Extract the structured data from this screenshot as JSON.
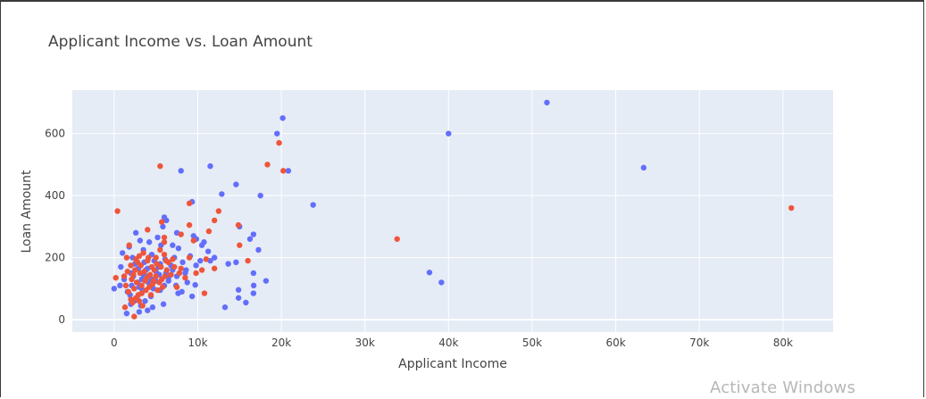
{
  "chart_data": {
    "type": "scatter",
    "title": "Applicant Income vs. Loan Amount",
    "xlabel": "Applicant Income",
    "ylabel": "Loan Amount",
    "xlim": [
      -5000,
      86000
    ],
    "ylim": [
      -40,
      740
    ],
    "x_ticks": [
      {
        "value": 0,
        "label": "0"
      },
      {
        "value": 10000,
        "label": "10k"
      },
      {
        "value": 20000,
        "label": "20k"
      },
      {
        "value": 30000,
        "label": "30k"
      },
      {
        "value": 40000,
        "label": "40k"
      },
      {
        "value": 50000,
        "label": "50k"
      },
      {
        "value": 60000,
        "label": "60k"
      },
      {
        "value": 70000,
        "label": "70k"
      },
      {
        "value": 80000,
        "label": "80k"
      }
    ],
    "y_ticks": [
      {
        "value": 0,
        "label": "0"
      },
      {
        "value": 200,
        "label": "200"
      },
      {
        "value": 400,
        "label": "400"
      },
      {
        "value": 600,
        "label": "600"
      }
    ],
    "grid": true,
    "series": [
      {
        "color": "#636efa",
        "points": [
          [
            51763,
            700
          ],
          [
            20166,
            650
          ],
          [
            39999,
            600
          ],
          [
            19484,
            600
          ],
          [
            63337,
            490
          ],
          [
            20833,
            480
          ],
          [
            8000,
            480
          ],
          [
            11500,
            495
          ],
          [
            14583,
            436
          ],
          [
            12876,
            405
          ],
          [
            17500,
            400
          ],
          [
            23803,
            370
          ],
          [
            9323,
            380
          ],
          [
            6000,
            330
          ],
          [
            6250,
            320
          ],
          [
            5833,
            300
          ],
          [
            15000,
            300
          ],
          [
            16666,
            275
          ],
          [
            9500,
            270
          ],
          [
            9833,
            260
          ],
          [
            16250,
            260
          ],
          [
            10750,
            250
          ],
          [
            11250,
            220
          ],
          [
            10500,
            240
          ],
          [
            7500,
            280
          ],
          [
            7000,
            240
          ],
          [
            17263,
            225
          ],
          [
            12000,
            200
          ],
          [
            11500,
            190
          ],
          [
            14583,
            185
          ],
          [
            13650,
            180
          ],
          [
            16667,
            150
          ],
          [
            18165,
            125
          ],
          [
            37719,
            152
          ],
          [
            39147,
            120
          ],
          [
            16692,
            110
          ],
          [
            14880,
            96
          ],
          [
            16666,
            85
          ],
          [
            14880,
            70
          ],
          [
            15759,
            55
          ],
          [
            13262,
            40
          ],
          [
            9328,
            75
          ],
          [
            9703,
            112
          ],
          [
            7660,
            85
          ],
          [
            8750,
            120
          ],
          [
            5500,
            95
          ],
          [
            4000,
            30
          ],
          [
            3000,
            25
          ],
          [
            1500,
            20
          ],
          [
            0,
            100
          ],
          [
            700,
            110
          ],
          [
            800,
            170
          ],
          [
            1000,
            215
          ],
          [
            1800,
            235
          ],
          [
            2000,
            150
          ],
          [
            2200,
            200
          ],
          [
            2500,
            180
          ],
          [
            2600,
            280
          ],
          [
            2800,
            120
          ],
          [
            3100,
            255
          ],
          [
            3300,
            130
          ],
          [
            3500,
            225
          ],
          [
            3800,
            160
          ],
          [
            4200,
            250
          ],
          [
            4500,
            210
          ],
          [
            4800,
            190
          ],
          [
            5200,
            265
          ],
          [
            5600,
            240
          ],
          [
            6200,
            150
          ],
          [
            6800,
            175
          ],
          [
            7200,
            200
          ],
          [
            7700,
            230
          ],
          [
            8200,
            185
          ],
          [
            8600,
            160
          ],
          [
            9100,
            205
          ],
          [
            9800,
            175
          ],
          [
            10300,
            190
          ],
          [
            3200,
            45
          ],
          [
            2400,
            60
          ],
          [
            4600,
            40
          ],
          [
            5900,
            50
          ],
          [
            1200,
            130
          ],
          [
            1600,
            90
          ],
          [
            2100,
            110
          ],
          [
            2700,
            70
          ],
          [
            3400,
            95
          ],
          [
            3900,
            140
          ],
          [
            4300,
            115
          ],
          [
            5000,
            125
          ],
          [
            5400,
            145
          ],
          [
            6500,
            135
          ],
          [
            7400,
            110
          ],
          [
            8100,
            90
          ],
          [
            2900,
            165
          ],
          [
            3600,
            185
          ],
          [
            4100,
            120
          ],
          [
            4700,
            100
          ],
          [
            5300,
            170
          ],
          [
            6100,
            195
          ],
          [
            2300,
            140
          ],
          [
            1900,
            80
          ],
          [
            3700,
            60
          ],
          [
            4400,
            75
          ],
          [
            2000,
            50
          ],
          [
            3000,
            105
          ],
          [
            3500,
            145
          ],
          [
            4000,
            165
          ],
          [
            4500,
            130
          ],
          [
            5000,
            155
          ],
          [
            5500,
            180
          ],
          [
            6000,
            110
          ],
          [
            6500,
            125
          ],
          [
            7000,
            160
          ],
          [
            7500,
            140
          ],
          [
            8500,
            150
          ]
        ]
      },
      {
        "color": "#ef553b",
        "points": [
          [
            81000,
            360
          ],
          [
            33846,
            260
          ],
          [
            18333,
            500
          ],
          [
            19730,
            570
          ],
          [
            20233,
            480
          ],
          [
            5500,
            495
          ],
          [
            400,
            350
          ],
          [
            9000,
            375
          ],
          [
            12500,
            350
          ],
          [
            12000,
            320
          ],
          [
            14866,
            305
          ],
          [
            9000,
            305
          ],
          [
            5700,
            315
          ],
          [
            8000,
            275
          ],
          [
            9500,
            255
          ],
          [
            4000,
            290
          ],
          [
            6000,
            250
          ],
          [
            15000,
            240
          ],
          [
            11333,
            285
          ],
          [
            6000,
            265
          ],
          [
            16000,
            190
          ],
          [
            9000,
            200
          ],
          [
            11000,
            195
          ],
          [
            12000,
            165
          ],
          [
            10500,
            160
          ],
          [
            9800,
            150
          ],
          [
            7500,
            105
          ],
          [
            10800,
            85
          ],
          [
            1800,
            240
          ],
          [
            1500,
            200
          ],
          [
            2000,
            175
          ],
          [
            2500,
            160
          ],
          [
            3000,
            205
          ],
          [
            3500,
            215
          ],
          [
            4000,
            190
          ],
          [
            4500,
            170
          ],
          [
            5000,
            140
          ],
          [
            5500,
            225
          ],
          [
            6000,
            210
          ],
          [
            6500,
            185
          ],
          [
            7000,
            195
          ],
          [
            8000,
            165
          ],
          [
            8500,
            135
          ],
          [
            1200,
            140
          ],
          [
            1400,
            110
          ],
          [
            1700,
            90
          ],
          [
            2100,
            130
          ],
          [
            2400,
            100
          ],
          [
            2700,
            120
          ],
          [
            3100,
            150
          ],
          [
            3300,
            85
          ],
          [
            3700,
            125
          ],
          [
            4200,
            105
          ],
          [
            4600,
            115
          ],
          [
            5200,
            95
          ],
          [
            5700,
            130
          ],
          [
            6300,
            160
          ],
          [
            6800,
            145
          ],
          [
            7200,
            170
          ],
          [
            7800,
            150
          ],
          [
            2200,
            55
          ],
          [
            2600,
            70
          ],
          [
            3000,
            60
          ],
          [
            3400,
            45
          ],
          [
            1300,
            40
          ],
          [
            2400,
            10
          ],
          [
            200,
            135
          ],
          [
            2800,
            185
          ],
          [
            3200,
            175
          ],
          [
            3600,
            155
          ],
          [
            3900,
            135
          ],
          [
            4300,
            145
          ],
          [
            4800,
            160
          ],
          [
            5100,
            180
          ],
          [
            5400,
            120
          ],
          [
            5800,
            105
          ],
          [
            6200,
            190
          ],
          [
            4100,
            200
          ],
          [
            3800,
            95
          ],
          [
            2900,
            80
          ],
          [
            2000,
            65
          ],
          [
            1600,
            155
          ],
          [
            2300,
            145
          ],
          [
            2600,
            195
          ],
          [
            3300,
            110
          ],
          [
            4400,
            80
          ],
          [
            5000,
            200
          ],
          [
            5600,
            170
          ],
          [
            6100,
            140
          ],
          [
            4700,
            125
          ]
        ]
      }
    ]
  }
}
